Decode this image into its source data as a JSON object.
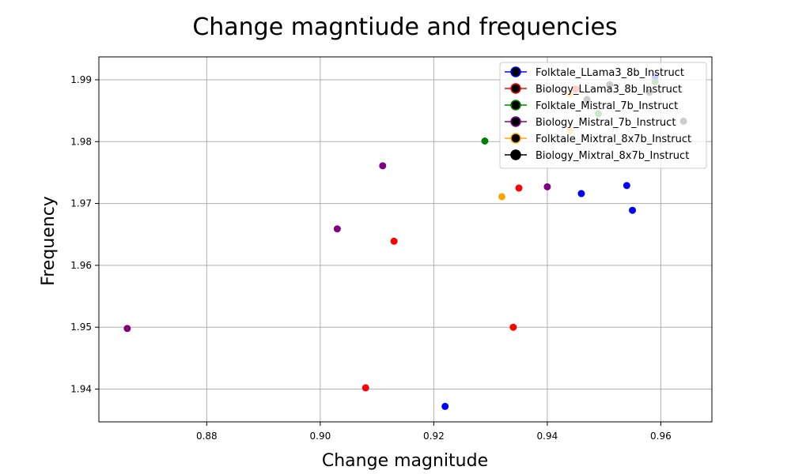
{
  "chart_data": {
    "type": "scatter",
    "title": "Change magntiude and frequencies",
    "xlabel": "Change magnitude",
    "ylabel": "Frequency",
    "xlim": [
      0.861,
      0.969
    ],
    "ylim": [
      1.9347,
      1.9937
    ],
    "xticks": [
      "0.88",
      "0.90",
      "0.92",
      "0.94",
      "0.96"
    ],
    "yticks": [
      "1.94",
      "1.95",
      "1.96",
      "1.97",
      "1.98",
      "1.99"
    ],
    "grid": true,
    "legend_position": "top-right",
    "series": [
      {
        "name": "Folktale_LLama3_8b_Instruct",
        "color": "#0000ff",
        "points": [
          [
            0.922,
            1.9372
          ],
          [
            0.946,
            1.9716
          ],
          [
            0.954,
            1.9729
          ],
          [
            0.955,
            1.9689
          ],
          [
            0.959,
            1.9905
          ]
        ]
      },
      {
        "name": "Biology_LLama3_8b_Instruct",
        "color": "#ff0000",
        "points": [
          [
            0.908,
            1.9402
          ],
          [
            0.913,
            1.9639
          ],
          [
            0.934,
            1.95
          ],
          [
            0.935,
            1.9725
          ],
          [
            0.945,
            1.9885
          ]
        ]
      },
      {
        "name": "Folktale_Mistral_7b_Instruct",
        "color": "#008000",
        "points": [
          [
            0.929,
            1.9801
          ],
          [
            0.949,
            1.9845
          ],
          [
            0.959,
            1.9897
          ]
        ]
      },
      {
        "name": "Biology_Mistral_7b_Instruct",
        "color": "#800080",
        "points": [
          [
            0.866,
            1.9498
          ],
          [
            0.903,
            1.9659
          ],
          [
            0.911,
            1.9761
          ],
          [
            0.94,
            1.9727
          ]
        ]
      },
      {
        "name": "Folktale_Mixtral_8x7b_Instruct",
        "color": "#ffa500",
        "points": [
          [
            0.932,
            1.9711
          ],
          [
            0.944,
            1.9818
          ],
          [
            0.944,
            1.9877
          ]
        ]
      },
      {
        "name": "Biology_Mixtral_8x7b_Instruct",
        "color": "#000000",
        "points": [
          [
            0.947,
            1.9868
          ],
          [
            0.951,
            1.9892
          ],
          [
            0.958,
            1.988
          ],
          [
            0.964,
            1.9833
          ]
        ]
      }
    ]
  }
}
